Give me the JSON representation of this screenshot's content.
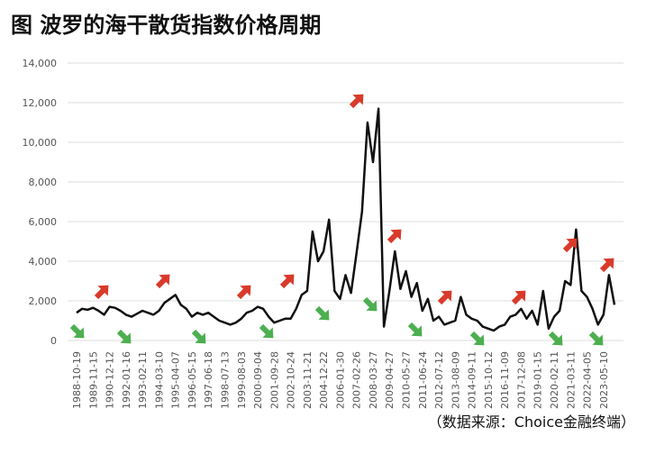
{
  "chart_data": {
    "type": "line",
    "title": "图  波罗的海干散货指数价格周期",
    "source": "（数据来源：Choice金融终端）",
    "categories": [
      "1988-10-19",
      null,
      null,
      "1989-11-15",
      null,
      null,
      "1990-12-12",
      null,
      null,
      "1992-01-16",
      null,
      null,
      "1993-02-11",
      null,
      null,
      "1994-03-10",
      null,
      null,
      "1995-04-07",
      null,
      null,
      "1996-05-15",
      null,
      null,
      "1997-06-18",
      null,
      null,
      "1998-07-13",
      null,
      null,
      "1999-08-03",
      null,
      null,
      "2000-09-04",
      null,
      null,
      "2001-09-28",
      null,
      null,
      "2002-10-24",
      null,
      null,
      "2003-11-21",
      null,
      null,
      "2004-12-22",
      null,
      null,
      "2006-01-30",
      null,
      null,
      "2007-02-26",
      null,
      null,
      "2008-03-27",
      null,
      null,
      "2009-04-27",
      null,
      null,
      "2010-05-27",
      null,
      null,
      "2011-06-24",
      null,
      null,
      "2012-07-12",
      null,
      null,
      "2013-08-09",
      null,
      null,
      "2014-09-11",
      null,
      null,
      "2015-10-12",
      null,
      null,
      "2016-11-09",
      null,
      null,
      "2017-12-08",
      null,
      null,
      "2019-01-15",
      null,
      null,
      "2020-02-11",
      null,
      null,
      "2021-03-11",
      null,
      null,
      "2022-04-05",
      null,
      null,
      "2023-05-10",
      null,
      null
    ],
    "series": [
      {
        "color": "#111111",
        "values": [
          1400,
          1600,
          1550,
          1650,
          1500,
          1300,
          1700,
          1650,
          1500,
          1300,
          1200,
          1350,
          1500,
          1400,
          1300,
          1500,
          1900,
          2100,
          2300,
          1800,
          1600,
          1200,
          1400,
          1300,
          1400,
          1200,
          1000,
          900,
          800,
          900,
          1100,
          1400,
          1500,
          1700,
          1600,
          1200,
          900,
          1000,
          1100,
          1100,
          1600,
          2300,
          2500,
          5500,
          4000,
          4500,
          6100,
          2500,
          2100,
          3300,
          2400,
          4400,
          6500,
          11000,
          9000,
          11700,
          700,
          2500,
          4500,
          2600,
          3500,
          2200,
          2900,
          1500,
          2100,
          1000,
          1200,
          800,
          900,
          1000,
          2200,
          1300,
          1100,
          1000,
          700,
          600,
          500,
          700,
          800,
          1200,
          1300,
          1600,
          1100,
          1500,
          800,
          2500,
          600,
          1200,
          1500,
          3000,
          2800,
          5600,
          2500,
          2200,
          1600,
          800,
          1300,
          3300,
          1800
        ]
      }
    ],
    "ylim": [
      0,
      14000
    ],
    "yticks": [
      0,
      {
        "value": 2000,
        "label": "2,000"
      },
      {
        "value": 4000,
        "label": "4,000"
      },
      {
        "value": 6000,
        "label": "6,000"
      },
      {
        "value": 8000,
        "label": "8,000"
      },
      {
        "value": 10000,
        "label": "10,000"
      },
      {
        "value": 12000,
        "label": "12,000"
      },
      {
        "value": 14000,
        "label": "14,000"
      }
    ],
    "grid": true
  }
}
